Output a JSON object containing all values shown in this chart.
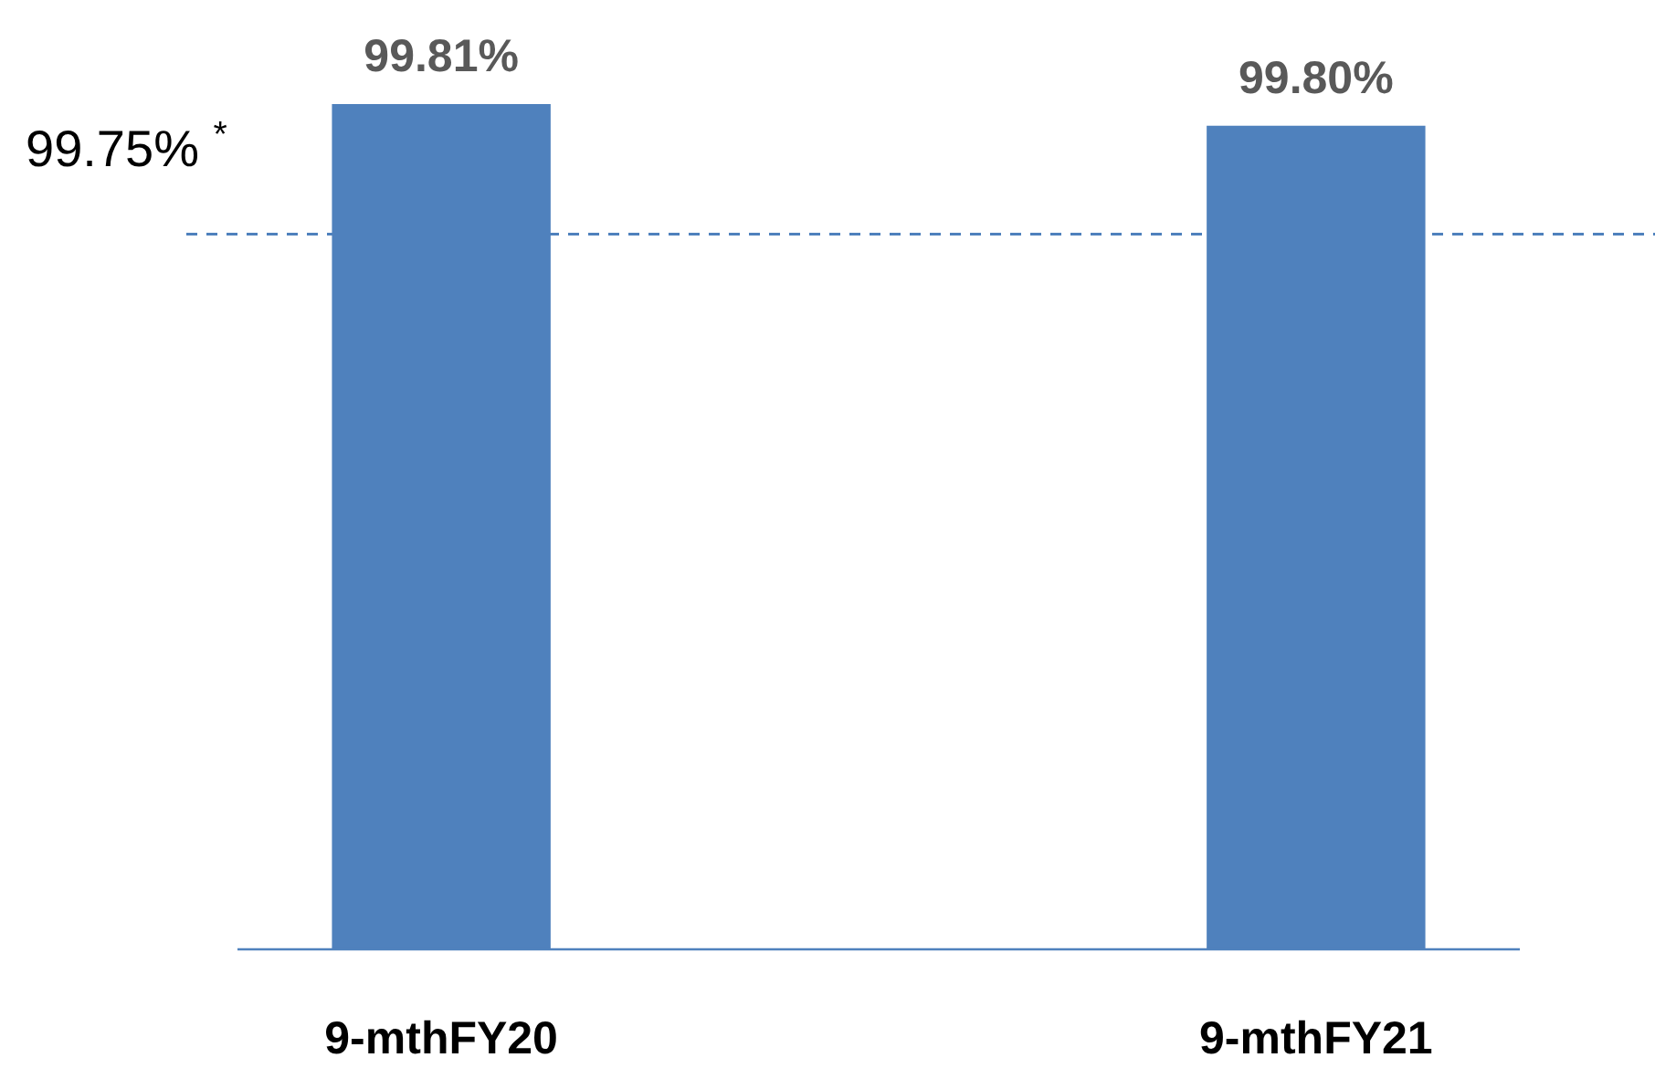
{
  "chart_data": {
    "type": "bar",
    "categories": [
      "9-mthFY20",
      "9-mthFY21"
    ],
    "values": [
      99.81,
      99.8
    ],
    "color": "#4f81bd",
    "ylim": [
      99.42,
      99.81
    ],
    "tick_labels": "x",
    "data_labels": true,
    "value_labels": [
      "99.81%",
      "99.80%"
    ],
    "ref_lines": [
      {
        "axis": "y",
        "value": 99.75,
        "label": "99.75% $^{*}$",
        "color": "#4f81bd",
        "line_style": "dashed"
      }
    ]
  }
}
